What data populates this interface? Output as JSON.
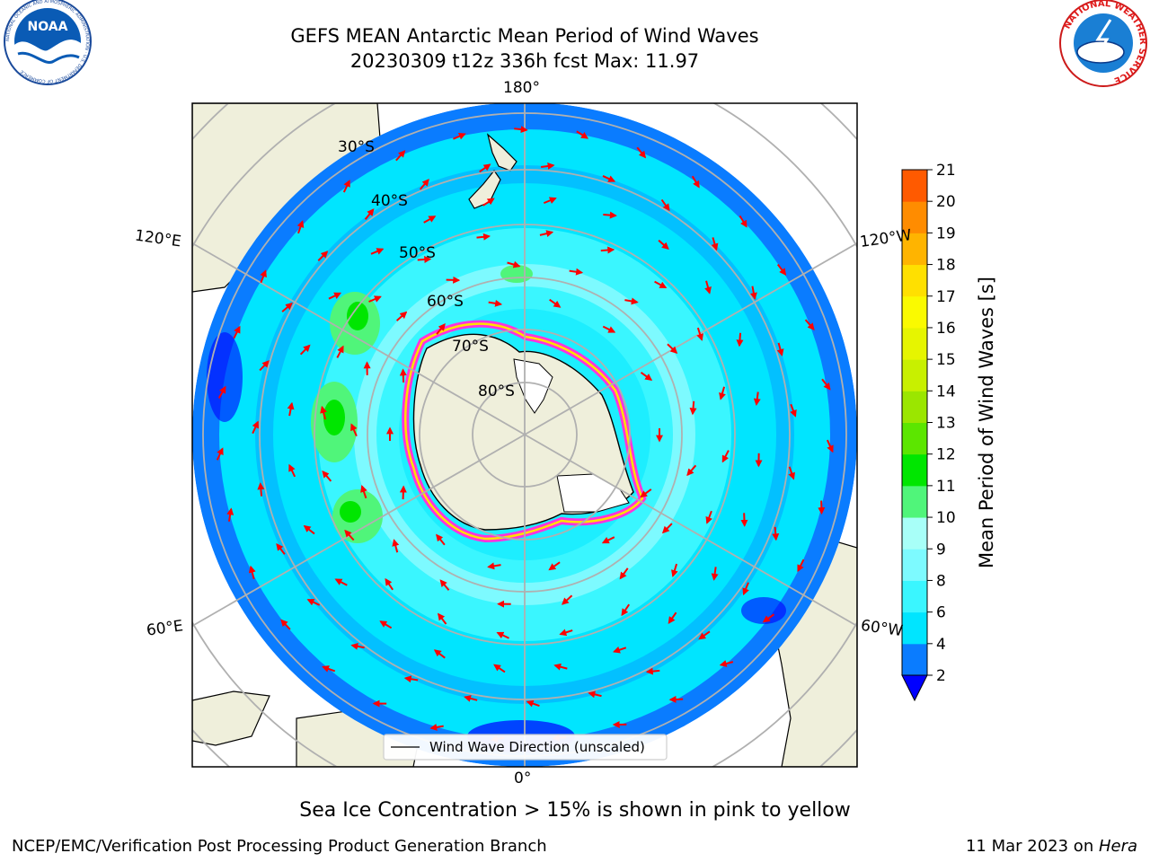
{
  "title_line1": "GEFS MEAN Antarctic Mean Period of Wind Waves",
  "title_line2": "20230309 t12z 336h fcst   Max: 11.97",
  "lon_labels": {
    "top": "180°",
    "bottom": "0°",
    "upper_left": "120°E",
    "upper_right": "120°W",
    "lower_left": "60°E",
    "lower_right": "60°W"
  },
  "lat_labels": [
    "30°S",
    "40°S",
    "50°S",
    "60°S",
    "70°S",
    "80°S"
  ],
  "legend_label": "Wind Wave Direction (unscaled)",
  "colorbar": {
    "label": "Mean Period of Wind Waves [s]",
    "ticks": [
      "2",
      "4",
      "6",
      "8",
      "9",
      "10",
      "11",
      "12",
      "13",
      "14",
      "15",
      "16",
      "17",
      "18",
      "19",
      "20",
      "21"
    ],
    "colors": [
      "#0a7cff",
      "#00e5ff",
      "#3af6ff",
      "#7dfaff",
      "#a8fff8",
      "#50f57a",
      "#00e600",
      "#5ce600",
      "#9be600",
      "#c8f000",
      "#e6f500",
      "#fafa00",
      "#ffe000",
      "#ffb400",
      "#ff8c00",
      "#ff5a00",
      "#ff2000",
      "#ff0000"
    ],
    "under_color": "#0000ff"
  },
  "caption": "Sea Ice Concentration > 15% is shown in pink to yellow",
  "footer_left": "NCEP/EMC/Verification Post Processing Product Generation Branch",
  "footer_right_date": "11 Mar 2023 on ",
  "footer_right_host": "Hera",
  "logos": {
    "noaa": "NOAA",
    "noaa_ring": "NATIONAL OCEANIC AND ATMOSPHERIC ADMINISTRATION · U.S. DEPARTMENT OF COMMERCE",
    "nws_ring": "NATIONAL WEATHER SERVICE"
  }
}
